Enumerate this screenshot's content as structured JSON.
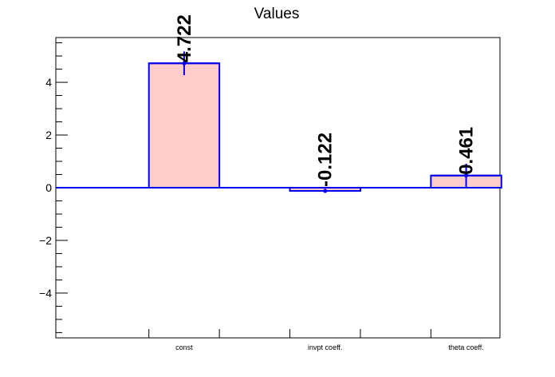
{
  "chart_data": {
    "type": "bar",
    "title": "Values",
    "categories": [
      "const",
      "invpt coeff.",
      "theta coeff."
    ],
    "values": [
      4.722,
      -0.122,
      0.461
    ],
    "errors": [
      0.45,
      0.08,
      0.45
    ],
    "value_labels": [
      "4.722",
      "-0.122",
      "0.461"
    ],
    "ylim": [
      -5.7,
      5.7
    ],
    "yticks": [
      -4,
      -2,
      0,
      2,
      4
    ],
    "ytick_labels": [
      "−4",
      "−2",
      "0",
      "2",
      "4"
    ],
    "xlabel": "",
    "ylabel": "",
    "grid": false,
    "colors": {
      "bar_fill": "#ffcccc",
      "bar_edge": "#0000ee",
      "axis": "#000000"
    }
  }
}
